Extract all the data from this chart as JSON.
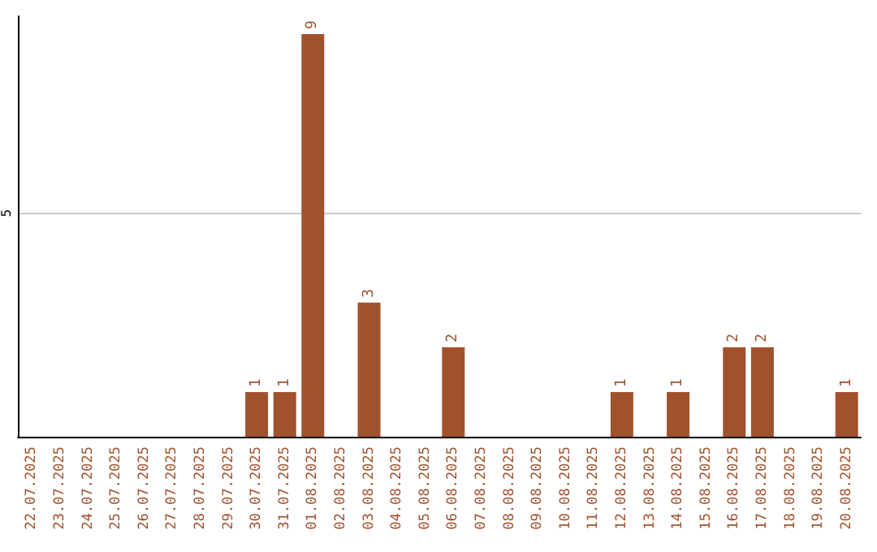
{
  "chart_data": {
    "type": "bar",
    "categories": [
      "22.07.2025",
      "23.07.2025",
      "24.07.2025",
      "25.07.2025",
      "26.07.2025",
      "27.07.2025",
      "28.07.2025",
      "29.07.2025",
      "30.07.2025",
      "31.07.2025",
      "01.08.2025",
      "02.08.2025",
      "03.08.2025",
      "04.08.2025",
      "05.08.2025",
      "06.08.2025",
      "07.08.2025",
      "08.08.2025",
      "09.08.2025",
      "10.08.2025",
      "11.08.2025",
      "12.08.2025",
      "13.08.2025",
      "14.08.2025",
      "15.08.2025",
      "16.08.2025",
      "17.08.2025",
      "18.08.2025",
      "19.08.2025",
      "20.08.2025"
    ],
    "values": [
      null,
      null,
      null,
      null,
      null,
      null,
      null,
      null,
      1,
      1,
      9,
      null,
      3,
      null,
      null,
      2,
      null,
      null,
      null,
      null,
      null,
      1,
      null,
      1,
      null,
      2,
      2,
      null,
      null,
      1
    ],
    "color": "#a0522d",
    "ylim": [
      0,
      9.4
    ],
    "yticks": [
      5
    ],
    "grid": "y",
    "data_labels": true
  }
}
